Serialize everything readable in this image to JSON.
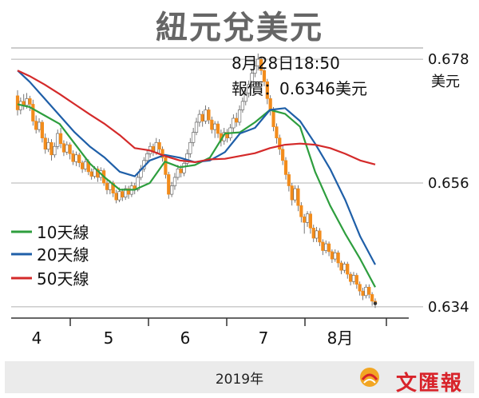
{
  "title": "紐元兌美元",
  "annotation": {
    "time": "8月28日18:50",
    "quote": "報價：0.6346美元"
  },
  "footer": {
    "year": "2019年",
    "publisher": "文匯報"
  },
  "colors": {
    "ma10": "#2e9e3e",
    "ma20": "#1f5fa8",
    "ma50": "#d42a2a",
    "candle_up": "#ffffff",
    "candle_down": "#f28c1c",
    "grid": "#b0b0b0"
  },
  "chart_data": {
    "type": "line",
    "unit": "美元",
    "xlabel": "",
    "ylabel": "美元",
    "ylim": [
      0.632,
      0.68
    ],
    "y_ticks": [
      0.634,
      0.656,
      0.678
    ],
    "x_ticks": [
      "4",
      "5",
      "6",
      "7",
      "8月"
    ],
    "grid": true,
    "legend_position": "left",
    "series": [
      {
        "name": "10天線",
        "x": [
          1,
          5,
          10,
          15,
          20,
          25,
          30,
          35,
          40,
          45,
          50,
          55,
          60,
          65,
          70,
          75,
          80,
          85,
          90,
          95,
          100,
          105,
          110,
          115,
          120
        ],
        "values": [
          0.67,
          0.6695,
          0.668,
          0.6665,
          0.663,
          0.6595,
          0.657,
          0.6548,
          0.6548,
          0.656,
          0.6598,
          0.6588,
          0.6592,
          0.6605,
          0.6648,
          0.665,
          0.6668,
          0.669,
          0.6683,
          0.666,
          0.658,
          0.652,
          0.647,
          0.6425,
          0.6375
        ]
      },
      {
        "name": "20天線",
        "x": [
          1,
          5,
          10,
          15,
          20,
          25,
          30,
          35,
          40,
          45,
          50,
          55,
          60,
          65,
          70,
          75,
          80,
          85,
          90,
          95,
          100,
          105,
          110,
          115,
          120
        ],
        "values": [
          0.676,
          0.674,
          0.671,
          0.668,
          0.665,
          0.6625,
          0.6605,
          0.658,
          0.6572,
          0.66,
          0.661,
          0.6605,
          0.6597,
          0.66,
          0.6615,
          0.6648,
          0.6658,
          0.669,
          0.6693,
          0.667,
          0.663,
          0.6585,
          0.653,
          0.6465,
          0.6415
        ]
      },
      {
        "name": "50天線",
        "x": [
          1,
          5,
          10,
          15,
          20,
          25,
          30,
          35,
          40,
          45,
          50,
          55,
          60,
          65,
          70,
          75,
          80,
          85,
          90,
          95,
          100,
          105,
          110,
          115,
          120
        ],
        "values": [
          0.676,
          0.675,
          0.6735,
          0.6718,
          0.67,
          0.6682,
          0.6665,
          0.6645,
          0.6622,
          0.6618,
          0.6608,
          0.66,
          0.6597,
          0.6602,
          0.6603,
          0.6608,
          0.6613,
          0.6622,
          0.6628,
          0.663,
          0.6628,
          0.6622,
          0.6612,
          0.66,
          0.6593
        ]
      }
    ],
    "candles": [
      [
        0.6715,
        0.669,
        0.6725,
        0.668
      ],
      [
        0.669,
        0.6705,
        0.6712,
        0.6682
      ],
      [
        0.6705,
        0.6698,
        0.6718,
        0.669
      ],
      [
        0.6698,
        0.671,
        0.672,
        0.6692
      ],
      [
        0.671,
        0.67,
        0.6715,
        0.6688
      ],
      [
        0.67,
        0.667,
        0.6708,
        0.6662
      ],
      [
        0.667,
        0.6655,
        0.668,
        0.6648
      ],
      [
        0.6655,
        0.6668,
        0.6675,
        0.665
      ],
      [
        0.6668,
        0.664,
        0.6672,
        0.6632
      ],
      [
        0.664,
        0.662,
        0.6648,
        0.6612
      ],
      [
        0.662,
        0.6632,
        0.664,
        0.6615
      ],
      [
        0.6632,
        0.661,
        0.6638,
        0.66
      ],
      [
        0.661,
        0.6625,
        0.6632,
        0.6605
      ],
      [
        0.6625,
        0.6648,
        0.6655,
        0.662
      ],
      [
        0.6648,
        0.663,
        0.6658,
        0.6622
      ],
      [
        0.663,
        0.6615,
        0.6636,
        0.6608
      ],
      [
        0.6615,
        0.6628,
        0.6634,
        0.661
      ],
      [
        0.6628,
        0.6612,
        0.6632,
        0.6602
      ],
      [
        0.6612,
        0.6598,
        0.6618,
        0.6592
      ],
      [
        0.6598,
        0.661,
        0.6616,
        0.659
      ],
      [
        0.661,
        0.6596,
        0.6614,
        0.6588
      ],
      [
        0.6596,
        0.6585,
        0.66,
        0.6578
      ],
      [
        0.6585,
        0.6598,
        0.6604,
        0.658
      ],
      [
        0.6598,
        0.658,
        0.6602,
        0.6574
      ],
      [
        0.658,
        0.6572,
        0.6586,
        0.6566
      ],
      [
        0.6572,
        0.6585,
        0.659,
        0.6568
      ],
      [
        0.6585,
        0.657,
        0.659,
        0.6562
      ],
      [
        0.657,
        0.6582,
        0.6588,
        0.6564
      ],
      [
        0.6582,
        0.656,
        0.6586,
        0.6555
      ],
      [
        0.656,
        0.6548,
        0.6566,
        0.654
      ],
      [
        0.6548,
        0.656,
        0.6565,
        0.654
      ],
      [
        0.656,
        0.6542,
        0.6564,
        0.6535
      ],
      [
        0.6542,
        0.653,
        0.6548,
        0.6524
      ],
      [
        0.653,
        0.6545,
        0.6552,
        0.6526
      ],
      [
        0.6545,
        0.6535,
        0.655,
        0.6528
      ],
      [
        0.6535,
        0.655,
        0.6556,
        0.653
      ],
      [
        0.655,
        0.654,
        0.6555,
        0.6532
      ],
      [
        0.654,
        0.6555,
        0.6562,
        0.6535
      ],
      [
        0.6555,
        0.6548,
        0.656,
        0.654
      ],
      [
        0.6548,
        0.657,
        0.6576,
        0.6545
      ],
      [
        0.657,
        0.6585,
        0.6592,
        0.6565
      ],
      [
        0.6585,
        0.66,
        0.6606,
        0.658
      ],
      [
        0.66,
        0.6612,
        0.662,
        0.6595
      ],
      [
        0.6612,
        0.6625,
        0.6632,
        0.6605
      ],
      [
        0.6625,
        0.6615,
        0.663,
        0.6608
      ],
      [
        0.6615,
        0.6632,
        0.664,
        0.661
      ],
      [
        0.6632,
        0.662,
        0.6638,
        0.6612
      ],
      [
        0.662,
        0.6605,
        0.6625,
        0.6598
      ],
      [
        0.6605,
        0.6575,
        0.661,
        0.6568
      ],
      [
        0.6575,
        0.654,
        0.658,
        0.6532
      ],
      [
        0.654,
        0.6555,
        0.6562,
        0.6535
      ],
      [
        0.6555,
        0.657,
        0.6578,
        0.6548
      ],
      [
        0.657,
        0.6585,
        0.6592,
        0.6565
      ],
      [
        0.6585,
        0.6578,
        0.6592,
        0.657
      ],
      [
        0.6578,
        0.6595,
        0.6602,
        0.6572
      ],
      [
        0.6595,
        0.6612,
        0.662,
        0.659
      ],
      [
        0.6612,
        0.6632,
        0.664,
        0.6605
      ],
      [
        0.6632,
        0.665,
        0.6658,
        0.6625
      ],
      [
        0.665,
        0.6668,
        0.6676,
        0.6645
      ],
      [
        0.6668,
        0.6682,
        0.669,
        0.666
      ],
      [
        0.6682,
        0.667,
        0.6688,
        0.666
      ],
      [
        0.667,
        0.669,
        0.6698,
        0.6665
      ],
      [
        0.669,
        0.6672,
        0.6695,
        0.6665
      ],
      [
        0.6672,
        0.6655,
        0.6678,
        0.6648
      ],
      [
        0.6655,
        0.6665,
        0.667,
        0.664
      ],
      [
        0.6665,
        0.6648,
        0.667,
        0.664
      ],
      [
        0.6648,
        0.6635,
        0.6655,
        0.6625
      ],
      [
        0.6635,
        0.665,
        0.6658,
        0.6628
      ],
      [
        0.665,
        0.664,
        0.6656,
        0.6632
      ],
      [
        0.664,
        0.6658,
        0.6665,
        0.6635
      ],
      [
        0.6658,
        0.6675,
        0.6682,
        0.665
      ],
      [
        0.6675,
        0.6668,
        0.6685,
        0.666
      ],
      [
        0.6668,
        0.669,
        0.6698,
        0.6662
      ],
      [
        0.669,
        0.6705,
        0.6712,
        0.6685
      ],
      [
        0.6705,
        0.672,
        0.6728,
        0.6698
      ],
      [
        0.672,
        0.6735,
        0.6742,
        0.6712
      ],
      [
        0.6735,
        0.6755,
        0.6762,
        0.6728
      ],
      [
        0.6755,
        0.6768,
        0.6778,
        0.6748
      ],
      [
        0.6768,
        0.678,
        0.679,
        0.676
      ],
      [
        0.678,
        0.676,
        0.6785,
        0.6752
      ],
      [
        0.676,
        0.674,
        0.6765,
        0.6732
      ],
      [
        0.674,
        0.671,
        0.6745,
        0.67
      ],
      [
        0.671,
        0.669,
        0.6716,
        0.668
      ],
      [
        0.669,
        0.666,
        0.6695,
        0.6652
      ],
      [
        0.666,
        0.664,
        0.6666,
        0.663
      ],
      [
        0.664,
        0.662,
        0.6646,
        0.661
      ],
      [
        0.662,
        0.66,
        0.6626,
        0.6592
      ],
      [
        0.66,
        0.6575,
        0.6606,
        0.6566
      ],
      [
        0.6575,
        0.6555,
        0.658,
        0.6545
      ],
      [
        0.6555,
        0.653,
        0.656,
        0.652
      ],
      [
        0.653,
        0.655,
        0.6556,
        0.6525
      ],
      [
        0.655,
        0.652,
        0.6556,
        0.651
      ],
      [
        0.652,
        0.65,
        0.6526,
        0.649
      ],
      [
        0.65,
        0.649,
        0.6505,
        0.647
      ],
      [
        0.649,
        0.6505,
        0.651,
        0.6482
      ],
      [
        0.6505,
        0.648,
        0.651,
        0.647
      ],
      [
        0.648,
        0.6462,
        0.6486,
        0.6455
      ],
      [
        0.6462,
        0.6475,
        0.6482,
        0.6455
      ],
      [
        0.6475,
        0.6455,
        0.648,
        0.6448
      ],
      [
        0.6455,
        0.644,
        0.646,
        0.6432
      ],
      [
        0.644,
        0.6452,
        0.6458,
        0.6435
      ],
      [
        0.6452,
        0.6438,
        0.6456,
        0.643
      ],
      [
        0.6438,
        0.6425,
        0.6442,
        0.6418
      ],
      [
        0.6425,
        0.6436,
        0.6442,
        0.642
      ],
      [
        0.6436,
        0.6418,
        0.644,
        0.641
      ],
      [
        0.6418,
        0.6405,
        0.6422,
        0.6398
      ],
      [
        0.6405,
        0.6416,
        0.642,
        0.64
      ],
      [
        0.6416,
        0.6398,
        0.642,
        0.639
      ],
      [
        0.6398,
        0.6385,
        0.6402,
        0.6378
      ],
      [
        0.6385,
        0.6396,
        0.6402,
        0.638
      ],
      [
        0.6396,
        0.638,
        0.64,
        0.6372
      ],
      [
        0.638,
        0.6368,
        0.6385,
        0.636
      ],
      [
        0.6368,
        0.636,
        0.6374,
        0.6352
      ],
      [
        0.636,
        0.6375,
        0.638,
        0.6355
      ],
      [
        0.6375,
        0.6362,
        0.638,
        0.6355
      ],
      [
        0.6362,
        0.635,
        0.6366,
        0.6342
      ],
      [
        0.635,
        0.6346,
        0.6355,
        0.6338
      ]
    ]
  }
}
